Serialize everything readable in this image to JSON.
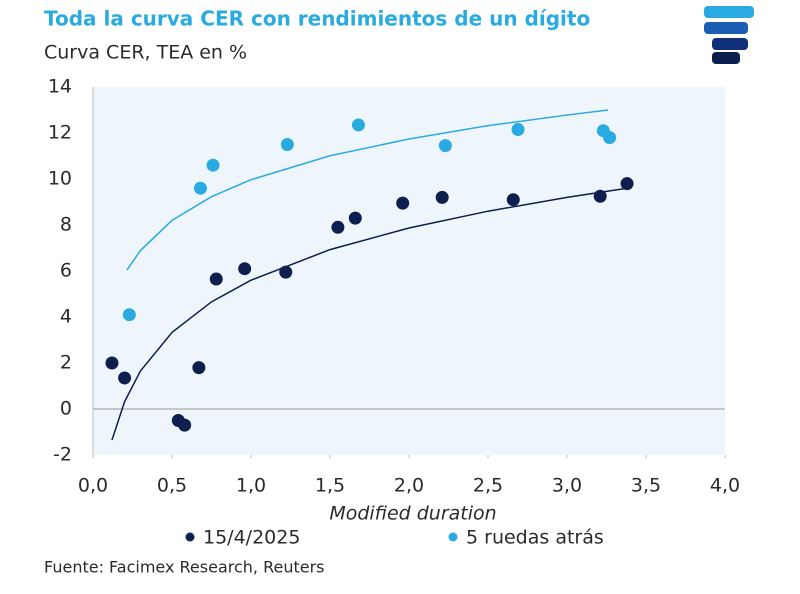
{
  "chart_data": {
    "type": "scatter",
    "title": "Toda la curva CER con rendimientos de un dígito",
    "subtitle": "Curva CER, TEA en %",
    "x_label": "Modified duration",
    "source": "Fuente: Facimex Research, Reuters",
    "xlim": [
      0,
      4
    ],
    "ylim": [
      -2,
      14
    ],
    "xticks": [
      {
        "value": 0,
        "label": "0,0"
      },
      {
        "value": 0.5,
        "label": "0,5"
      },
      {
        "value": 1,
        "label": "1,0"
      },
      {
        "value": 1.5,
        "label": "1,5"
      },
      {
        "value": 2,
        "label": "2,0"
      },
      {
        "value": 2.5,
        "label": "2,5"
      },
      {
        "value": 3,
        "label": "3,0"
      },
      {
        "value": 3.5,
        "label": "3,5"
      },
      {
        "value": 4,
        "label": "4,0"
      }
    ],
    "yticks": [
      -2,
      0,
      2,
      4,
      6,
      8,
      10,
      12,
      14
    ],
    "series": [
      {
        "name": "15/4/2025",
        "color": "#0d1f4f",
        "x": [
          0.12,
          0.2,
          0.54,
          0.58,
          0.67,
          0.78,
          0.96,
          1.22,
          1.55,
          1.66,
          1.96,
          2.21,
          2.66,
          3.21,
          3.38
        ],
        "values": [
          2.0,
          1.35,
          -0.5,
          -0.7,
          1.8,
          5.65,
          6.1,
          5.95,
          7.9,
          8.3,
          8.95,
          9.2,
          9.1,
          9.25,
          9.8
        ],
        "trend": {
          "x": [
            0.12,
            0.2,
            0.3,
            0.5,
            0.75,
            1,
            1.5,
            2,
            2.5,
            3,
            3.38
          ],
          "values": [
            -1.35,
            0.32,
            1.65,
            3.33,
            4.66,
            5.6,
            6.93,
            7.87,
            8.6,
            9.2,
            9.6
          ]
        }
      },
      {
        "name": "5 ruedas atrás",
        "color": "#29abe2",
        "x": [
          0.23,
          0.68,
          0.76,
          1.23,
          1.68,
          2.23,
          2.69,
          3.23,
          3.27
        ],
        "values": [
          4.1,
          9.6,
          10.6,
          11.5,
          12.35,
          11.45,
          12.15,
          12.1,
          11.8
        ],
        "trend": {
          "x": [
            0.215,
            0.3,
            0.5,
            0.75,
            1,
            1.5,
            2,
            2.5,
            3,
            3.26
          ],
          "values": [
            6.04,
            6.89,
            8.2,
            9.23,
            9.97,
            11.01,
            11.74,
            12.32,
            12.78,
            13.0
          ]
        }
      }
    ]
  }
}
